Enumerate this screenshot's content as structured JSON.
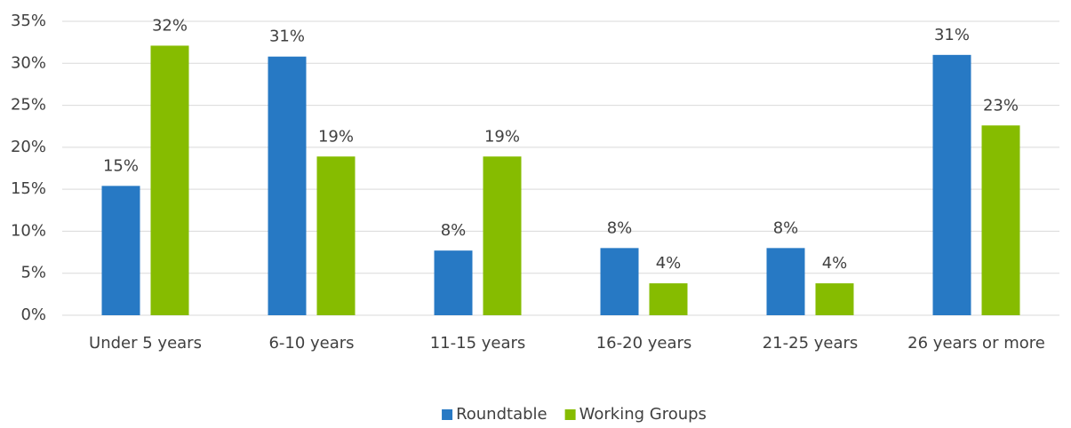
{
  "chart_data": {
    "type": "bar",
    "categories": [
      "Under 5 years",
      "6-10 years",
      "11-15 years",
      "16-20 years",
      "21-25 years",
      "26 years or more"
    ],
    "series": [
      {
        "name": "Roundtable",
        "color": "#2779c4",
        "values": [
          15.4,
          30.8,
          7.7,
          8.0,
          8.0,
          31.0
        ],
        "value_labels": [
          "15%",
          "31%",
          "8%",
          "8%",
          "8%",
          "31%"
        ]
      },
      {
        "name": "Working Groups",
        "color": "#86bc00",
        "values": [
          32.1,
          18.9,
          18.9,
          3.8,
          3.8,
          22.6
        ],
        "value_labels": [
          "32%",
          "19%",
          "19%",
          "4%",
          "4%",
          "23%"
        ]
      }
    ],
    "ylim": [
      0,
      35
    ],
    "yticks": [
      {
        "value": 0,
        "label": "0%"
      },
      {
        "value": 5,
        "label": "5%"
      },
      {
        "value": 10,
        "label": "10%"
      },
      {
        "value": 15,
        "label": "15%"
      },
      {
        "value": 20,
        "label": "20%"
      },
      {
        "value": 25,
        "label": "25%"
      },
      {
        "value": 30,
        "label": "30%"
      },
      {
        "value": 35,
        "label": "35%"
      }
    ],
    "grid": true,
    "legend": "bottom"
  }
}
